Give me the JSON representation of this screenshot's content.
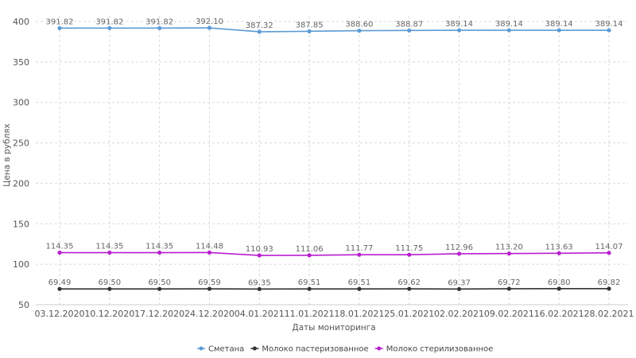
{
  "chart_data": {
    "type": "line",
    "title": "",
    "xlabel": "Даты мониторинга",
    "ylabel": "Цена в рублях",
    "ylim": [
      50,
      400
    ],
    "yticks": [
      50,
      100,
      150,
      200,
      250,
      300,
      350,
      400
    ],
    "grid": true,
    "legend_position": "bottom",
    "categories": [
      "03.12.2020",
      "10.12.2020",
      "17.12.2020",
      "24.12.2020",
      "04.01.2021",
      "11.01.2021",
      "18.01.2021",
      "25.01.2021",
      "02.02.2021",
      "09.02.2021",
      "16.02.2021",
      "28.02.2021"
    ],
    "series": [
      {
        "name": "Сметана",
        "color": "#5b9bd5",
        "values": [
          391.82,
          391.82,
          391.82,
          392.1,
          387.32,
          387.85,
          388.6,
          388.87,
          389.14,
          389.14,
          389.14,
          389.14
        ],
        "labels": [
          "391.82",
          "391.82",
          "391.82",
          "392.10",
          "387.32",
          "387.85",
          "388.60",
          "388.87",
          "389.14",
          "389.14",
          "389.14",
          "389.14"
        ]
      },
      {
        "name": "Молоко пастеризованное",
        "color": "#333333",
        "values": [
          69.49,
          69.5,
          69.5,
          69.59,
          69.35,
          69.51,
          69.51,
          69.62,
          69.37,
          69.72,
          69.8,
          69.82
        ],
        "labels": [
          "69.49",
          "69.50",
          "69.50",
          "69.59",
          "69.35",
          "69.51",
          "69.51",
          "69.62",
          "69.37",
          "69.72",
          "69.80",
          "69.82"
        ]
      },
      {
        "name": "Молоко стерилизованное",
        "color": "#b81fcf",
        "values": [
          114.35,
          114.35,
          114.35,
          114.48,
          110.93,
          111.06,
          111.77,
          111.75,
          112.96,
          113.2,
          113.63,
          114.07
        ],
        "labels": [
          "114.35",
          "114.35",
          "114.35",
          "114.48",
          "110.93",
          "111.06",
          "111.77",
          "111.75",
          "112.96",
          "113.20",
          "113.63",
          "114.07"
        ]
      }
    ]
  }
}
